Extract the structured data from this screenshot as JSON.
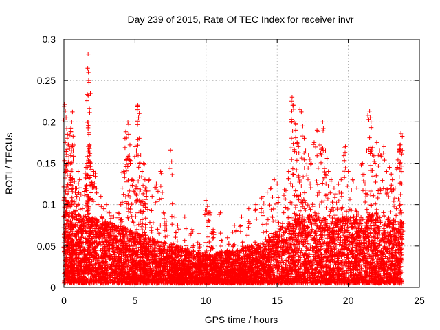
{
  "chart_data": {
    "type": "scatter",
    "title": "Day 239 of 2015, Rate Of TEC Index for receiver invr",
    "xlabel": "GPS time / hours",
    "ylabel": "ROTI / TECUs",
    "xlim": [
      0,
      25
    ],
    "ylim": [
      0,
      0.3
    ],
    "xticks": [
      0,
      5,
      10,
      15,
      20,
      25
    ],
    "yticks": [
      0,
      0.05,
      0.1,
      0.15,
      0.2,
      0.25,
      0.3
    ],
    "xtick_labels": [
      "0",
      "5",
      "10",
      "15",
      "20",
      "25"
    ],
    "ytick_labels": [
      "0",
      "0.05",
      "0.1",
      "0.15",
      "0.2",
      "0.25",
      "0.3"
    ],
    "grid": true,
    "marker": "+",
    "color": "#ff0000",
    "series": [
      {
        "name": "ROTI",
        "points": [
          [
            0.05,
            0.221
          ],
          [
            0.1,
            0.213
          ],
          [
            0.15,
            0.205
          ],
          [
            0.2,
            0.192
          ],
          [
            0.25,
            0.185
          ],
          [
            0.1,
            0.175
          ],
          [
            0.3,
            0.172
          ],
          [
            0.4,
            0.168
          ],
          [
            0.2,
            0.16
          ],
          [
            0.35,
            0.155
          ],
          [
            0.45,
            0.15
          ],
          [
            0.6,
            0.212
          ],
          [
            0.55,
            0.2
          ],
          [
            0.5,
            0.188
          ],
          [
            0.6,
            0.172
          ],
          [
            0.65,
            0.165
          ],
          [
            0.5,
            0.14
          ],
          [
            0.7,
            0.128
          ],
          [
            0.8,
            0.12
          ],
          [
            0.9,
            0.11
          ],
          [
            1.0,
            0.14
          ],
          [
            1.1,
            0.13
          ],
          [
            1.2,
            0.112
          ],
          [
            1.3,
            0.095
          ],
          [
            1.4,
            0.085
          ],
          [
            1.5,
            0.138
          ],
          [
            1.55,
            0.145
          ],
          [
            1.6,
            0.15
          ],
          [
            1.65,
            0.135
          ],
          [
            1.7,
            0.282
          ],
          [
            1.72,
            0.26
          ],
          [
            1.74,
            0.25
          ],
          [
            1.76,
            0.248
          ],
          [
            1.7,
            0.2
          ],
          [
            1.75,
            0.185
          ],
          [
            1.8,
            0.172
          ],
          [
            1.72,
            0.165
          ],
          [
            1.85,
            0.15
          ],
          [
            1.9,
            0.135
          ],
          [
            2.0,
            0.12
          ],
          [
            2.1,
            0.14
          ],
          [
            2.2,
            0.138
          ],
          [
            2.3,
            0.12
          ],
          [
            2.4,
            0.1
          ],
          [
            2.6,
            0.11
          ],
          [
            2.8,
            0.095
          ],
          [
            3.0,
            0.1
          ],
          [
            3.2,
            0.09
          ],
          [
            3.5,
            0.085
          ],
          [
            3.8,
            0.09
          ],
          [
            4.0,
            0.1
          ],
          [
            4.1,
            0.12
          ],
          [
            4.2,
            0.14
          ],
          [
            4.3,
            0.18
          ],
          [
            4.35,
            0.188
          ],
          [
            4.5,
            0.2
          ],
          [
            4.55,
            0.185
          ],
          [
            4.6,
            0.16
          ],
          [
            4.7,
            0.15
          ],
          [
            4.8,
            0.13
          ],
          [
            5.0,
            0.17
          ],
          [
            5.1,
            0.165
          ],
          [
            5.2,
            0.22
          ],
          [
            5.25,
            0.205
          ],
          [
            5.3,
            0.18
          ],
          [
            5.4,
            0.16
          ],
          [
            5.5,
            0.14
          ],
          [
            5.6,
            0.15
          ],
          [
            5.7,
            0.13
          ],
          [
            5.8,
            0.12
          ],
          [
            6.0,
            0.13
          ],
          [
            6.2,
            0.11
          ],
          [
            6.5,
            0.125
          ],
          [
            6.8,
            0.14
          ],
          [
            7.0,
            0.09
          ],
          [
            7.2,
            0.08
          ],
          [
            7.5,
            0.166
          ],
          [
            7.8,
            0.085
          ],
          [
            8.0,
            0.075
          ],
          [
            8.5,
            0.085
          ],
          [
            9.0,
            0.07
          ],
          [
            9.5,
            0.065
          ],
          [
            10.0,
            0.105
          ],
          [
            10.1,
            0.098
          ],
          [
            10.3,
            0.09
          ],
          [
            10.5,
            0.07
          ],
          [
            11.0,
            0.09
          ],
          [
            11.5,
            0.06
          ],
          [
            12.0,
            0.075
          ],
          [
            12.5,
            0.085
          ],
          [
            13.0,
            0.095
          ],
          [
            13.5,
            0.1
          ],
          [
            14.0,
            0.11
          ],
          [
            14.3,
            0.115
          ],
          [
            14.6,
            0.12
          ],
          [
            14.8,
            0.13
          ],
          [
            15.0,
            0.125
          ],
          [
            15.5,
            0.118
          ],
          [
            15.8,
            0.14
          ],
          [
            16.0,
            0.225
          ],
          [
            16.05,
            0.23
          ],
          [
            16.1,
            0.22
          ],
          [
            16.2,
            0.2
          ],
          [
            16.3,
            0.19
          ],
          [
            16.4,
            0.175
          ],
          [
            16.5,
            0.17
          ],
          [
            16.6,
            0.215
          ],
          [
            16.7,
            0.212
          ],
          [
            16.8,
            0.195
          ],
          [
            16.9,
            0.18
          ],
          [
            17.0,
            0.165
          ],
          [
            17.2,
            0.16
          ],
          [
            17.4,
            0.15
          ],
          [
            17.6,
            0.175
          ],
          [
            17.8,
            0.19
          ],
          [
            18.0,
            0.172
          ],
          [
            18.2,
            0.2
          ],
          [
            18.25,
            0.192
          ],
          [
            18.4,
            0.165
          ],
          [
            18.6,
            0.14
          ],
          [
            18.8,
            0.13
          ],
          [
            19.0,
            0.12
          ],
          [
            19.3,
            0.125
          ],
          [
            19.5,
            0.13
          ],
          [
            19.8,
            0.17
          ],
          [
            20.0,
            0.14
          ],
          [
            20.3,
            0.13
          ],
          [
            20.6,
            0.12
          ],
          [
            21.0,
            0.15
          ],
          [
            21.3,
            0.165
          ],
          [
            21.5,
            0.213
          ],
          [
            21.55,
            0.205
          ],
          [
            21.6,
            0.2
          ],
          [
            21.7,
            0.16
          ],
          [
            21.9,
            0.15
          ],
          [
            22.0,
            0.175
          ],
          [
            22.2,
            0.165
          ],
          [
            22.3,
            0.16
          ],
          [
            22.5,
            0.17
          ],
          [
            22.7,
            0.14
          ],
          [
            22.9,
            0.145
          ],
          [
            23.1,
            0.13
          ],
          [
            23.3,
            0.12
          ],
          [
            23.5,
            0.165
          ],
          [
            23.6,
            0.172
          ],
          [
            23.7,
            0.186
          ],
          [
            23.65,
            0.15
          ],
          [
            23.7,
            0.1
          ],
          [
            23.75,
            0.09
          ]
        ],
        "background_band": {
          "description": "dense cloud of low-ROTI samples",
          "x_range": [
            0,
            23.8
          ],
          "profile_x": [
            0,
            2,
            4,
            6,
            8,
            10,
            12,
            14,
            16,
            18,
            20,
            22,
            23.8
          ],
          "profile_ymax": [
            0.09,
            0.085,
            0.075,
            0.06,
            0.05,
            0.04,
            0.045,
            0.055,
            0.09,
            0.085,
            0.085,
            0.09,
            0.08
          ],
          "y_floor": 0.005
        }
      }
    ]
  }
}
